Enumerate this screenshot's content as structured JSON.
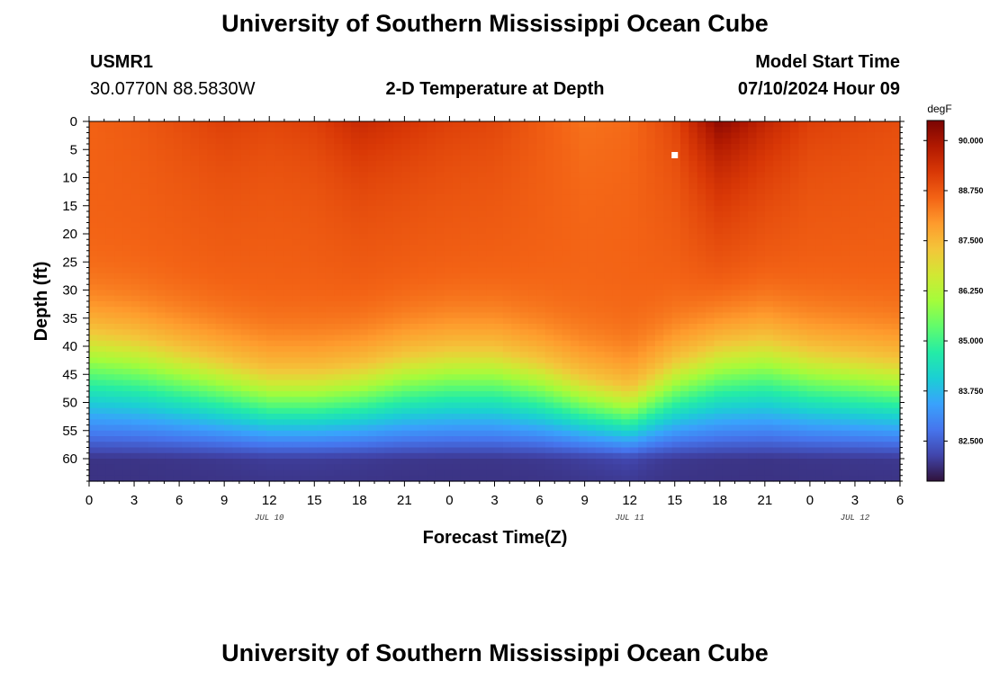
{
  "page": {
    "title": "University of Southern Mississippi Ocean Cube",
    "footer_title": "University of Southern Mississippi Ocean Cube"
  },
  "header": {
    "station": "USMR1",
    "location": "30.0770N  88.5830W",
    "plot_title": "2-D Temperature at Depth",
    "model_label": "Model Start Time",
    "model_time": "07/10/2024 Hour 09"
  },
  "chart_data": {
    "type": "heatmap",
    "title": "2-D Temperature at Depth",
    "xlabel": "Forecast Time(Z)",
    "ylabel": "Depth (ft)",
    "x_ticks": [
      "0",
      "3",
      "6",
      "9",
      "12",
      "15",
      "18",
      "21",
      "0",
      "3",
      "6",
      "9",
      "12",
      "15",
      "18",
      "21",
      "0",
      "3",
      "6"
    ],
    "x_range_hours": [
      0,
      54
    ],
    "date_labels": [
      {
        "label": "JUL 10",
        "hour": 12
      },
      {
        "label": "JUL 11",
        "hour": 36
      },
      {
        "label": "JUL 12",
        "hour": 51
      }
    ],
    "y_ticks": [
      0,
      5,
      10,
      15,
      20,
      25,
      30,
      35,
      40,
      45,
      50,
      55,
      60
    ],
    "y_range_ft": [
      0,
      64
    ],
    "colorbar": {
      "unit": "degF",
      "range": [
        81.5,
        90.5
      ],
      "ticks": [
        "90.000",
        "88.750",
        "87.500",
        "86.250",
        "85.000",
        "83.750",
        "82.500"
      ],
      "colors": [
        "#30123b",
        "#4145ab",
        "#4675ed",
        "#39a2fc",
        "#1bcfd4",
        "#24eca6",
        "#61fc6c",
        "#a4fc3b",
        "#d1e834",
        "#f3c63a",
        "#fe9b2d",
        "#f36315",
        "#d93806",
        "#b11901",
        "#7a0403"
      ]
    },
    "thermocline_depth_ft": [
      31,
      32,
      34,
      36,
      38,
      38,
      37,
      35,
      34,
      34,
      36,
      39,
      41,
      36,
      33,
      32,
      34,
      35,
      36
    ],
    "surface_temp_degF": [
      88.6,
      88.7,
      88.9,
      89.1,
      89.0,
      89.1,
      89.5,
      89.3,
      89.1,
      89.0,
      88.7,
      88.4,
      88.5,
      89.0,
      90.3,
      89.6,
      89.1,
      89.0,
      88.9
    ],
    "bottom_temp_degF": 81.9,
    "marker": {
      "hour": 39,
      "depth_ft": 6
    }
  }
}
